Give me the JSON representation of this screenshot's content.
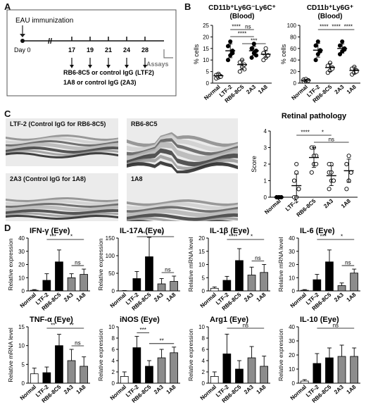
{
  "panels": {
    "A": {
      "letter": "A",
      "immunization": "EAU immunization",
      "day_label": "Day 0",
      "break_mark": "//",
      "days": [
        "17",
        "19",
        "21",
        "24",
        "28"
      ],
      "assays": "Assays",
      "line1": "RB6-8C5 or control IgG (LTF2)",
      "line2": "1A8 or control IgG (2A3)"
    },
    "B": {
      "letter": "B"
    },
    "C": {
      "letter": "C",
      "images": [
        {
          "label": "LTF-2 (Control IgG for RB6-8C5)"
        },
        {
          "label": "RB6-8C5"
        },
        {
          "label": "2A3 (Control IgG for 1A8)"
        },
        {
          "label": "1A8"
        }
      ]
    },
    "D": {
      "letter": "D"
    }
  },
  "colors": {
    "black": "#000000",
    "gray": "#8c8c8c",
    "white": "#ffffff"
  },
  "chart_data": [
    {
      "id": "B1",
      "type": "scatter",
      "title": "CD11b⁺Ly6G⁻Ly6C⁺",
      "subtitle": "(Blood)",
      "ylabel": "% cells",
      "ylim": [
        0,
        25
      ],
      "yticks": [
        "0",
        "5",
        "10",
        "15",
        "20",
        "25"
      ],
      "categories": [
        "Normal",
        "LTF-2",
        "RB6-8C5",
        "2A3",
        "1A8"
      ],
      "means": [
        3.2,
        14,
        8,
        14,
        12.5
      ],
      "sd": [
        1,
        3,
        2,
        2,
        1.5
      ],
      "points": [
        [
          2,
          2.5,
          3,
          3.5,
          4,
          2.8
        ],
        [
          10,
          12,
          14,
          16,
          18,
          13
        ],
        [
          5,
          7,
          8,
          9,
          10,
          6
        ],
        [
          11,
          13,
          14,
          15,
          17,
          12
        ],
        [
          10,
          11,
          12,
          13,
          15,
          12
        ]
      ],
      "open_marker": [
        true,
        false,
        true,
        false,
        true
      ],
      "sig": [
        {
          "from": 1,
          "to": 2,
          "text": "****",
          "level": 0
        },
        {
          "from": 1,
          "to": 3,
          "text": "****",
          "level": 1
        },
        {
          "from": 2,
          "to": 3,
          "text": "ns",
          "level": 0
        },
        {
          "from": 2,
          "to": 4,
          "text": "***",
          "level": 2
        }
      ]
    },
    {
      "id": "B2",
      "type": "scatter",
      "title": "CD11b⁺Ly6G⁺",
      "subtitle": "(Blood)",
      "ylabel": "% cells",
      "ylim": [
        0,
        100
      ],
      "yticks": [
        "0",
        "20",
        "40",
        "60",
        "80",
        "100"
      ],
      "categories": [
        "Normal",
        "LTF-2",
        "RB6-8C5",
        "2A3",
        "1A8"
      ],
      "means": [
        5,
        57,
        27,
        60,
        22
      ],
      "sd": [
        2,
        12,
        7,
        8,
        6
      ],
      "points": [
        [
          3,
          4,
          5,
          6,
          7,
          4
        ],
        [
          40,
          50,
          57,
          65,
          72,
          55
        ],
        [
          18,
          22,
          27,
          30,
          35,
          25
        ],
        [
          50,
          55,
          60,
          65,
          72,
          58
        ],
        [
          15,
          18,
          22,
          25,
          28,
          20
        ]
      ],
      "open_marker": [
        true,
        false,
        true,
        false,
        true
      ],
      "sig": [
        {
          "from": 1,
          "to": 2,
          "text": "****",
          "level": 0
        },
        {
          "from": 2,
          "to": 3,
          "text": "****",
          "level": 0
        },
        {
          "from": 3,
          "to": 4,
          "text": "****",
          "level": 0
        }
      ]
    },
    {
      "id": "C1",
      "type": "scatter",
      "title": "Retinal pathology",
      "ylabel": "Score",
      "ylim": [
        0,
        4
      ],
      "yticks": [
        "0",
        "1",
        "2",
        "3",
        "4"
      ],
      "categories": [
        "Normal",
        "LTF-2",
        "RB6-8C5",
        "2A3",
        "1A8"
      ],
      "means": [
        0,
        0.7,
        2.4,
        1.3,
        1.6
      ],
      "sd": [
        0,
        0.7,
        0.6,
        0.6,
        0.7
      ],
      "points": [
        [
          0,
          0,
          0,
          0,
          0,
          0,
          0,
          0
        ],
        [
          0,
          0,
          0.5,
          1,
          1.5,
          0.5,
          1,
          2
        ],
        [
          1.5,
          2,
          2.5,
          3,
          3,
          2,
          3,
          2.5
        ],
        [
          0.5,
          1,
          1,
          1.5,
          2,
          1,
          2,
          1.5
        ],
        [
          0.5,
          1,
          1.5,
          2,
          2.5,
          1.5,
          2,
          1
        ]
      ],
      "open_marker": [
        false,
        true,
        true,
        true,
        true
      ],
      "sig": [
        {
          "from": 1,
          "to": 2,
          "text": "****",
          "level": 0
        },
        {
          "from": 2,
          "to": 4,
          "text": "ns",
          "level": 1
        },
        {
          "from": 2,
          "to": 3,
          "text": "*",
          "level": 0
        }
      ]
    },
    {
      "id": "D1",
      "type": "bar",
      "title": "IFN-γ (Eye)",
      "ylabel": "Relative expression",
      "ylim": [
        0,
        40
      ],
      "yticks": [
        "0",
        "10",
        "20",
        "30",
        "40"
      ],
      "categories": [
        "Normal",
        "LTF-2",
        "RB6-8C5",
        "2A3",
        "1A8"
      ],
      "values": [
        0.5,
        8,
        22,
        10,
        12.5
      ],
      "errors": [
        0.5,
        5,
        9,
        3,
        4
      ],
      "sig": [
        {
          "from": 1,
          "to": 2,
          "text": "***",
          "level": 1
        },
        {
          "from": 2,
          "to": 4,
          "text": "*",
          "level": 1
        },
        {
          "from": 3,
          "to": 4,
          "text": "ns",
          "level": 0
        }
      ]
    },
    {
      "id": "D2",
      "type": "bar",
      "title": "IL-17A (Eye)",
      "ylabel": "Relative expression",
      "ylim": [
        0,
        150
      ],
      "yticks": [
        "0",
        "50",
        "100",
        "150"
      ],
      "categories": [
        "Normal",
        "LTF-2",
        "RB6-8C5",
        "2A3",
        "1A8"
      ],
      "values": [
        0.5,
        35,
        97,
        20,
        27
      ],
      "errors": [
        0.5,
        20,
        55,
        15,
        15
      ],
      "sig": [
        {
          "from": 1,
          "to": 2,
          "text": "**",
          "level": 1
        },
        {
          "from": 2,
          "to": 4,
          "text": "**",
          "level": 1
        },
        {
          "from": 3,
          "to": 4,
          "text": "ns",
          "level": 0
        }
      ]
    },
    {
      "id": "D3",
      "type": "bar",
      "title": "IL-1β (Eye)",
      "ylabel": "Relative mRNA level",
      "ylim": [
        0,
        20
      ],
      "yticks": [
        "0",
        "5",
        "10",
        "15",
        "20"
      ],
      "categories": [
        "Normal",
        "LTF-2",
        "RB6-8C5",
        "2A3",
        "1A8"
      ],
      "values": [
        1,
        4,
        11.5,
        6,
        7
      ],
      "errors": [
        0.5,
        1.5,
        4.5,
        3,
        3
      ],
      "sig": [
        {
          "from": 1,
          "to": 2,
          "text": "****",
          "level": 1
        },
        {
          "from": 2,
          "to": 4,
          "text": "*",
          "level": 1
        },
        {
          "from": 3,
          "to": 4,
          "text": "ns",
          "level": 0
        }
      ]
    },
    {
      "id": "D4",
      "type": "bar",
      "title": "IL-6 (Eye)",
      "ylabel": "Relative mRNA level",
      "ylim": [
        0,
        40
      ],
      "yticks": [
        "0",
        "10",
        "20",
        "30",
        "40"
      ],
      "categories": [
        "Normal",
        "LTF-2",
        "RB6-8C5",
        "2A3",
        "1A8"
      ],
      "values": [
        0.5,
        8.5,
        22,
        4,
        13.5
      ],
      "errors": [
        0.5,
        4,
        9,
        2,
        3
      ],
      "sig": [
        {
          "from": 1,
          "to": 2,
          "text": "***",
          "level": 1
        },
        {
          "from": 2,
          "to": 4,
          "text": "*",
          "level": 1
        },
        {
          "from": 3,
          "to": 4,
          "text": "ns",
          "level": 0
        }
      ]
    },
    {
      "id": "D5",
      "type": "bar",
      "title": "TNF-α (Eye)",
      "ylabel": "Relative mRNA level",
      "ylim": [
        0,
        15
      ],
      "yticks": [
        "0",
        "5",
        "10",
        "15"
      ],
      "categories": [
        "Normal",
        "LTF-2",
        "RB6-8C5",
        "2A3",
        "1A8"
      ],
      "values": [
        2.5,
        2.8,
        10,
        6,
        4.5
      ],
      "errors": [
        1.5,
        1.5,
        3,
        3,
        2.5
      ],
      "sig": [
        {
          "from": 1,
          "to": 2,
          "text": "**",
          "level": 1
        },
        {
          "from": 2,
          "to": 4,
          "text": "**",
          "level": 1
        },
        {
          "from": 3,
          "to": 4,
          "text": "ns",
          "level": 0
        }
      ]
    },
    {
      "id": "D6",
      "type": "bar",
      "title": "iNOS (Eye)",
      "ylabel": "Relative expression",
      "ylim": [
        0,
        10
      ],
      "yticks": [
        "0",
        "2",
        "4",
        "6",
        "8",
        "10"
      ],
      "categories": [
        "Normal",
        "LTF-2",
        "RB6-8C5",
        "2A3",
        "1A8"
      ],
      "values": [
        1.2,
        6.3,
        3,
        4.5,
        5.4
      ],
      "errors": [
        0.8,
        2,
        1,
        1.5,
        1
      ],
      "sig": [
        {
          "from": 1,
          "to": 2,
          "text": "***",
          "level": 0
        },
        {
          "from": 2,
          "to": 4,
          "text": "**",
          "level": 0
        }
      ]
    },
    {
      "id": "D7",
      "type": "bar",
      "title": "Arg1 (Eye)",
      "ylabel": "Relative expression",
      "ylim": [
        0,
        10
      ],
      "yticks": [
        "0",
        "2",
        "4",
        "6",
        "8",
        "10"
      ],
      "categories": [
        "Normal",
        "LTF-2",
        "RB6-8C5",
        "2A3",
        "1A8"
      ],
      "values": [
        1.2,
        5.2,
        2.5,
        4.5,
        3
      ],
      "errors": [
        0.8,
        3.5,
        1.5,
        2,
        1.8
      ],
      "sig": [
        {
          "from": 1,
          "to": 4,
          "text": "ns",
          "level": 1
        }
      ]
    },
    {
      "id": "D8",
      "type": "bar",
      "title": "IL-10 (Eye)",
      "ylabel": "Relative expression",
      "ylim": [
        0,
        40
      ],
      "yticks": [
        "0",
        "10",
        "20",
        "30",
        "40"
      ],
      "categories": [
        "Normal",
        "LTF-2",
        "RB6-8C5",
        "2A3",
        "1A8"
      ],
      "values": [
        1.5,
        14,
        18,
        19,
        19
      ],
      "errors": [
        1,
        7,
        7,
        8,
        6
      ],
      "sig": [
        {
          "from": 1,
          "to": 4,
          "text": "ns",
          "level": 1
        }
      ]
    }
  ]
}
